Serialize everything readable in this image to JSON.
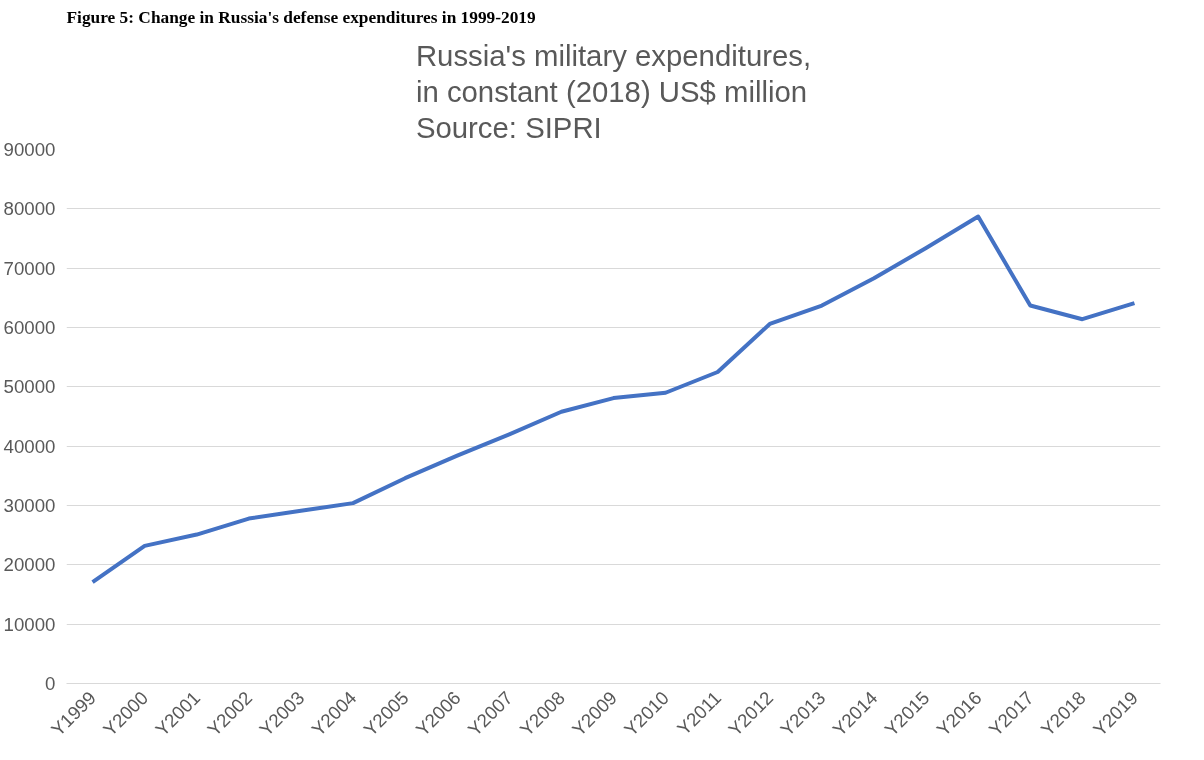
{
  "chart_data": {
    "type": "line",
    "title": "Russia's military expenditures,\nin constant (2018) US$ million\nSource: SIPRI",
    "annotations": [
      "Figure 5: Change in Russia's defense expenditures in 1999-2019"
    ],
    "categories": [
      "Y1999",
      "Y2000",
      "Y2001",
      "Y2002",
      "Y2003",
      "Y2004",
      "Y2005",
      "Y2006",
      "Y2007",
      "Y2008",
      "Y2009",
      "Y2010",
      "Y2011",
      "Y2012",
      "Y2013",
      "Y2014",
      "Y2015",
      "Y2016",
      "Y2017",
      "Y2018",
      "Y2019"
    ],
    "series": [
      {
        "color": "#4472c4",
        "values": [
          17100,
          23200,
          25100,
          27800,
          29100,
          30400,
          34600,
          38400,
          42000,
          45800,
          48100,
          49000,
          52500,
          60600,
          63700,
          68300,
          73400,
          78700,
          63700,
          61400,
          64100
        ]
      }
    ],
    "ylim": [
      0,
      90000
    ],
    "yticks": [
      0,
      10000,
      20000,
      30000,
      40000,
      50000,
      60000,
      70000,
      80000,
      90000
    ],
    "grid": "y",
    "marker": "none",
    "line_style": "solid"
  }
}
